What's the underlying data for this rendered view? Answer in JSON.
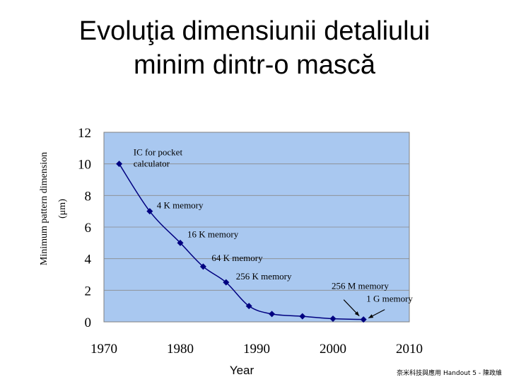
{
  "title_lines": [
    "Evoluţia dimensiunii detaliului",
    "minim dintr-o mască"
  ],
  "x_axis_title": "Year",
  "footer_note": "奈米科技與應用 Handout 5 - 陳政維",
  "chart_data": {
    "type": "line",
    "title": "Evoluţia dimensiunii detaliului minim dintr-o mască",
    "xlabel": "Year",
    "ylabel_lines": [
      "Minimum pattern dimension",
      "(μm)"
    ],
    "xlim": [
      1970,
      2010
    ],
    "ylim": [
      0,
      12
    ],
    "x_ticks": [
      1970,
      1980,
      1990,
      2000,
      2010
    ],
    "y_ticks": [
      0,
      2,
      4,
      6,
      8,
      10,
      12
    ],
    "grid": "horizontal",
    "plot_background": "#a9c8f0",
    "line_color": "#000080",
    "marker_color": "#000080",
    "series": [
      {
        "x": [
          1972,
          1976,
          1980,
          1983,
          1986,
          1989,
          1992,
          1996,
          2000,
          2004
        ],
        "y": [
          10,
          7,
          5,
          3.5,
          2.5,
          1,
          0.5,
          0.35,
          0.2,
          0.15
        ]
      }
    ],
    "annotations": [
      {
        "lines": [
          "IC for pocket",
          "calculator"
        ],
        "x": 1972.2,
        "y": 10,
        "dx": 18,
        "dy": -12
      },
      {
        "lines": [
          "4 K memory"
        ],
        "x": 1976,
        "y": 7,
        "dx": 10,
        "dy": -4
      },
      {
        "lines": [
          "16 K memory"
        ],
        "x": 1980,
        "y": 5,
        "dx": 10,
        "dy": -8
      },
      {
        "lines": [
          "64 K memory"
        ],
        "x": 1983,
        "y": 3.5,
        "dx": 12,
        "dy": -8
      },
      {
        "lines": [
          "256 K memory"
        ],
        "x": 1986,
        "y": 2.5,
        "dx": 14,
        "dy": -4
      },
      {
        "lines": [
          "256 M memory"
        ],
        "x": 2000,
        "y": 0.2,
        "dx": -2,
        "dy": -42
      },
      {
        "lines": [
          "1 G  memory"
        ],
        "x": 2004,
        "y": 0.15,
        "dx": 4,
        "dy": -25
      }
    ]
  }
}
